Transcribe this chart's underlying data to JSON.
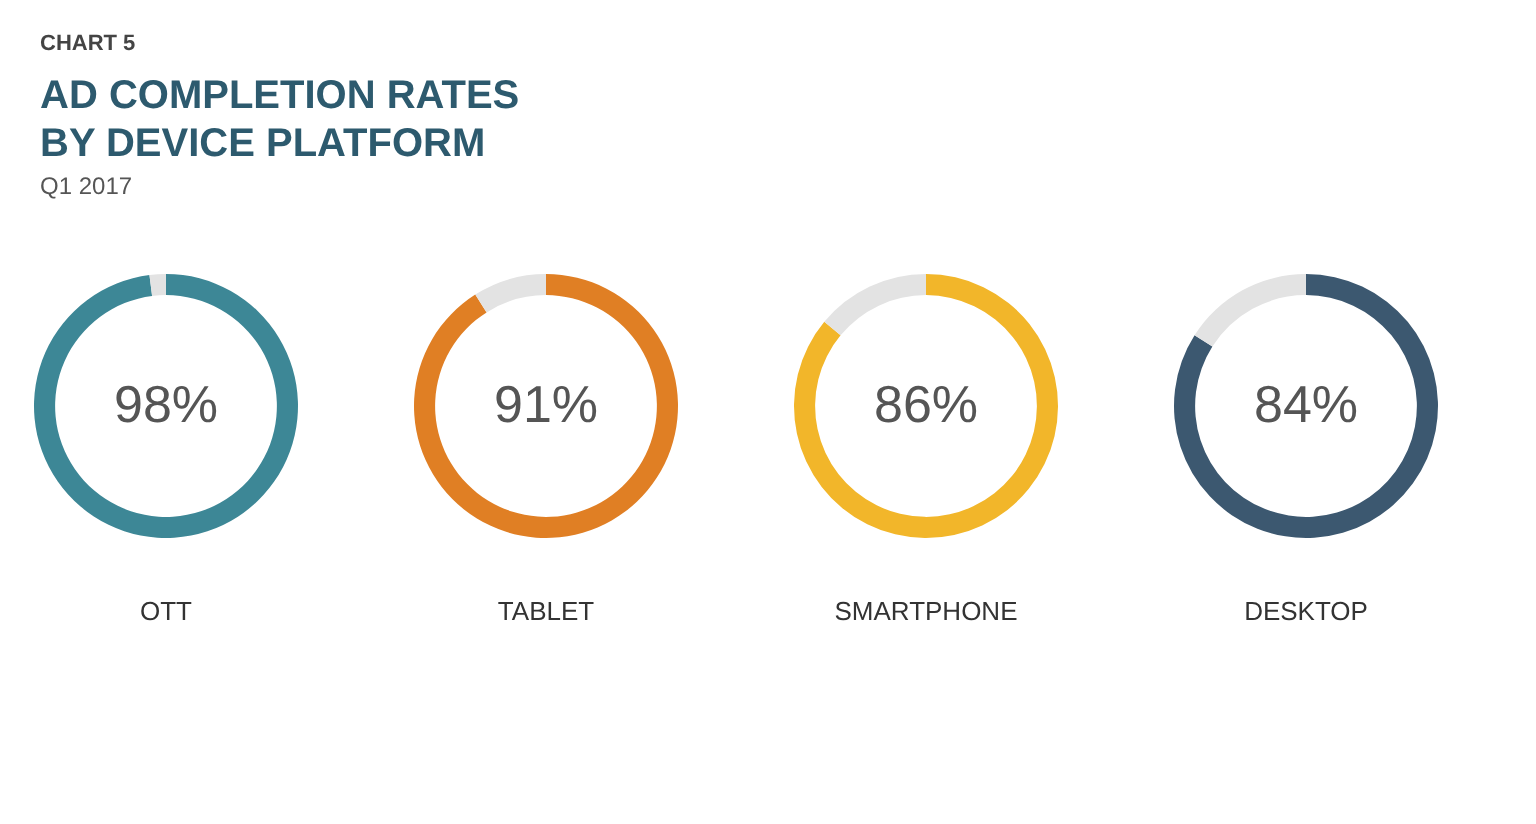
{
  "chart_data": [
    {
      "type": "donut",
      "title": "AD COMPLETION RATES BY DEVICE PLATFORM",
      "subtitle": "Q1 2017",
      "annotations": [
        "CHART 5"
      ],
      "categories": [
        "OTT",
        null
      ],
      "values": [
        98,
        2
      ],
      "colors": [
        "#3d8796",
        "#e3e3e3"
      ],
      "value_labels": [
        "98%",
        null
      ]
    },
    {
      "type": "donut",
      "categories": [
        "TABLET",
        null
      ],
      "values": [
        91,
        9
      ],
      "colors": [
        "#e07f24",
        "#e3e3e3"
      ],
      "value_labels": [
        "91%",
        null
      ]
    },
    {
      "type": "donut",
      "categories": [
        "SMARTPHONE",
        null
      ],
      "values": [
        86,
        14
      ],
      "colors": [
        "#f2b62a",
        "#e3e3e3"
      ],
      "value_labels": [
        "86%",
        null
      ]
    },
    {
      "type": "donut",
      "categories": [
        "DESKTOP",
        null
      ],
      "values": [
        84,
        16
      ],
      "colors": [
        "#3c5870",
        "#e3e3e3"
      ],
      "value_labels": [
        "84%",
        null
      ]
    }
  ]
}
